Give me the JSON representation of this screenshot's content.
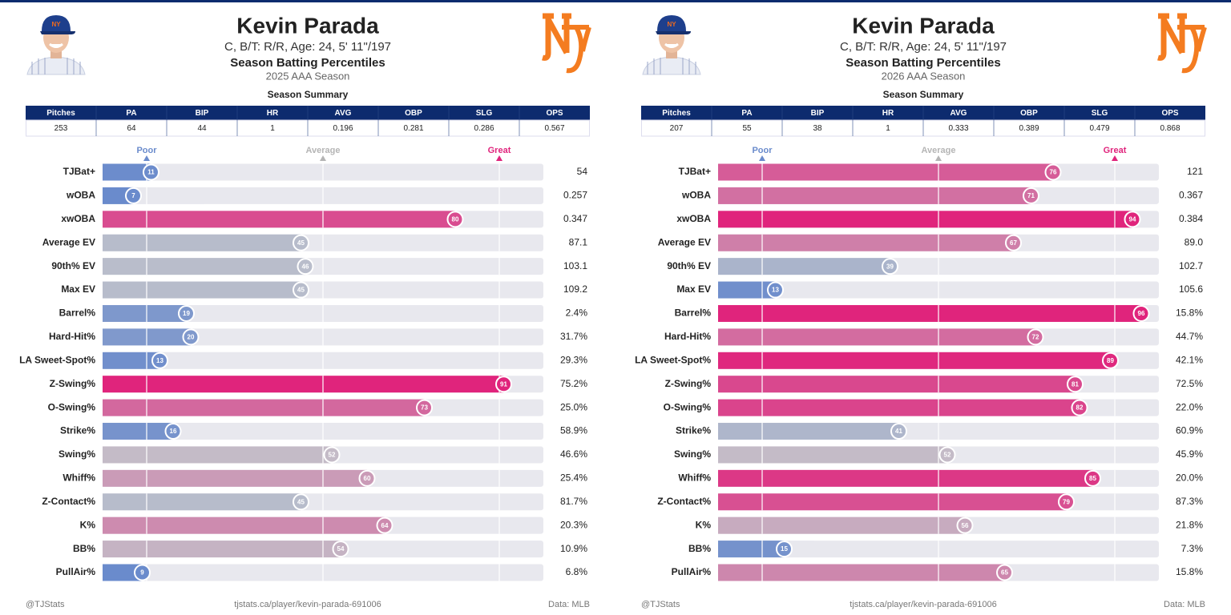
{
  "chart_data": [
    {
      "type": "percentile-bar",
      "name": "Kevin Parada",
      "subtitle": "C, B/T: R/R, Age: 24, 5' 11\"/197",
      "title": "Season Batting Percentiles",
      "season": "2025 AAA Season",
      "summary_title": "Season Summary",
      "summary": {
        "columns": [
          "Pitches",
          "PA",
          "BIP",
          "HR",
          "AVG",
          "OBP",
          "SLG",
          "OPS"
        ],
        "values": [
          253,
          64,
          44,
          1,
          0.196,
          0.281,
          0.286,
          0.567
        ]
      },
      "xlim": [
        0,
        100
      ],
      "xticks": [
        {
          "value": 10,
          "label": "Poor"
        },
        {
          "value": 50,
          "label": "Average"
        },
        {
          "value": 90,
          "label": "Great"
        }
      ],
      "colormap": [
        "#6a8bcc",
        "#c2c3cb",
        "#e0247c"
      ],
      "categories": [
        "TJBat+",
        "wOBA",
        "xwOBA",
        "Average EV",
        "90th% EV",
        "Max EV",
        "Barrel%",
        "Hard-Hit%",
        "LA Sweet-Spot%",
        "Z-Swing%",
        "O-Swing%",
        "Strike%",
        "Swing%",
        "Whiff%",
        "Z-Contact%",
        "K%",
        "BB%",
        "PullAir%"
      ],
      "values": [
        11,
        7,
        80,
        45,
        46,
        45,
        19,
        20,
        13,
        91,
        73,
        16,
        52,
        60,
        45,
        64,
        54,
        9
      ],
      "stats": [
        "54",
        "0.257",
        "0.347",
        "87.1",
        "103.1",
        "109.2",
        "2.4%",
        "31.7%",
        "29.3%",
        "75.2%",
        "25.0%",
        "58.9%",
        "46.6%",
        "25.4%",
        "81.7%",
        "20.3%",
        "10.9%",
        "6.8%"
      ],
      "footer": [
        "@TJStats",
        "tjstats.ca/player/kevin-parada-691006",
        "Data: MLB"
      ]
    },
    {
      "type": "percentile-bar",
      "name": "Kevin Parada",
      "subtitle": "C, B/T: R/R, Age: 24, 5' 11\"/197",
      "title": "Season Batting Percentiles",
      "season": "2026 AAA Season",
      "summary_title": "Season Summary",
      "summary": {
        "columns": [
          "Pitches",
          "PA",
          "BIP",
          "HR",
          "AVG",
          "OBP",
          "SLG",
          "OPS"
        ],
        "values": [
          207,
          55,
          38,
          1,
          0.333,
          0.389,
          0.479,
          0.868
        ]
      },
      "xlim": [
        0,
        100
      ],
      "xticks": [
        {
          "value": 10,
          "label": "Poor"
        },
        {
          "value": 50,
          "label": "Average"
        },
        {
          "value": 90,
          "label": "Great"
        }
      ],
      "colormap": [
        "#6a8bcc",
        "#c2c3cb",
        "#e0247c"
      ],
      "categories": [
        "TJBat+",
        "wOBA",
        "xwOBA",
        "Average EV",
        "90th% EV",
        "Max EV",
        "Barrel%",
        "Hard-Hit%",
        "LA Sweet-Spot%",
        "Z-Swing%",
        "O-Swing%",
        "Strike%",
        "Swing%",
        "Whiff%",
        "Z-Contact%",
        "K%",
        "BB%",
        "PullAir%"
      ],
      "values": [
        76,
        71,
        94,
        67,
        39,
        13,
        96,
        72,
        89,
        81,
        82,
        41,
        52,
        85,
        79,
        56,
        15,
        65
      ],
      "stats": [
        "121",
        "0.367",
        "0.384",
        "89.0",
        "102.7",
        "105.6",
        "15.8%",
        "44.7%",
        "42.1%",
        "72.5%",
        "22.0%",
        "60.9%",
        "45.9%",
        "20.0%",
        "87.3%",
        "21.8%",
        "7.3%",
        "15.8%"
      ],
      "footer": [
        "@TJStats",
        "tjstats.ca/player/kevin-parada-691006",
        "Data: MLB"
      ]
    }
  ]
}
